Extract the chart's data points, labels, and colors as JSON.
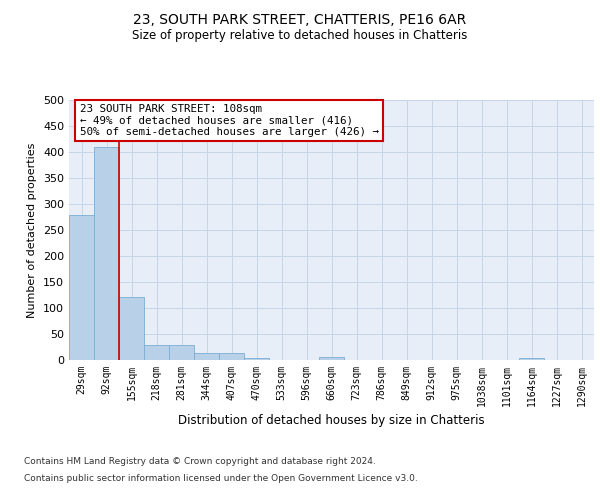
{
  "title": "23, SOUTH PARK STREET, CHATTERIS, PE16 6AR",
  "subtitle": "Size of property relative to detached houses in Chatteris",
  "xlabel": "Distribution of detached houses by size in Chatteris",
  "ylabel": "Number of detached properties",
  "categories": [
    "29sqm",
    "92sqm",
    "155sqm",
    "218sqm",
    "281sqm",
    "344sqm",
    "407sqm",
    "470sqm",
    "533sqm",
    "596sqm",
    "660sqm",
    "723sqm",
    "786sqm",
    "849sqm",
    "912sqm",
    "975sqm",
    "1038sqm",
    "1101sqm",
    "1164sqm",
    "1227sqm",
    "1290sqm"
  ],
  "values": [
    278,
    410,
    122,
    29,
    29,
    14,
    14,
    4,
    0,
    0,
    6,
    0,
    0,
    0,
    0,
    0,
    0,
    0,
    4,
    0,
    0
  ],
  "bar_color": "#b8d0e8",
  "bar_edge_color": "#7aadd4",
  "grid_color": "#c8d4e8",
  "background_color": "#e8eef8",
  "annotation_text": "23 SOUTH PARK STREET: 108sqm\n← 49% of detached houses are smaller (416)\n50% of semi-detached houses are larger (426) →",
  "annotation_box_color": "#ffffff",
  "annotation_box_edge": "#cc0000",
  "ylim": [
    0,
    500
  ],
  "yticks": [
    0,
    50,
    100,
    150,
    200,
    250,
    300,
    350,
    400,
    450,
    500
  ],
  "footer1": "Contains HM Land Registry data © Crown copyright and database right 2024.",
  "footer2": "Contains public sector information licensed under the Open Government Licence v3.0."
}
